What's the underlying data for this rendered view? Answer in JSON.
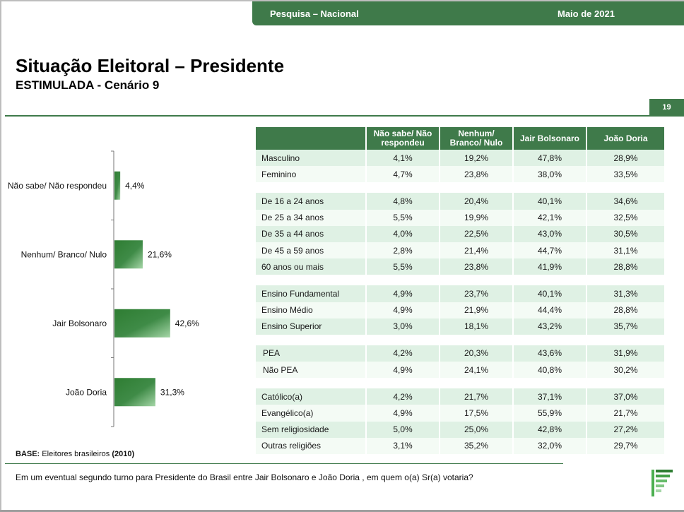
{
  "header": {
    "survey": "Pesquisa – Nacional",
    "date": "Maio de 2021"
  },
  "title": "Situação Eleitoral – Presidente",
  "subtitle": "ESTIMULADA - Cenário 9",
  "page_number": "19",
  "colors": {
    "brand_green": "#3f7a4a",
    "bar_dark": "#2e7d32",
    "bar_light": "#a5d6a7",
    "row_light": "#dff1e4",
    "row_lighter": "#f4fbf5"
  },
  "chart_data": [
    {
      "type": "bar",
      "orientation": "horizontal",
      "categories": [
        "Não sabe/ Não respondeu",
        "Nenhum/ Branco/ Nulo",
        "Jair Bolsonaro",
        "João Doria"
      ],
      "values": [
        4.4,
        21.6,
        42.6,
        31.3
      ],
      "value_labels": [
        "4,4%",
        "21,6%",
        "42,6%",
        "31,3%"
      ],
      "unit": "%",
      "grid": false,
      "legend": "none"
    },
    {
      "type": "table",
      "columns": [
        "",
        "Não sabe/ Não respondeu",
        "Nenhum/ Branco/ Nulo",
        "Jair Bolsonaro",
        "João Doria"
      ],
      "groups": [
        [
          [
            "Masculino",
            "4,1%",
            "19,2%",
            "47,8%",
            "28,9%"
          ],
          [
            "Feminino",
            "4,7%",
            "23,8%",
            "38,0%",
            "33,5%"
          ]
        ],
        [
          [
            "De 16 a 24 anos",
            "4,8%",
            "20,4%",
            "40,1%",
            "34,6%"
          ],
          [
            "De 25 a 34 anos",
            "5,5%",
            "19,9%",
            "42,1%",
            "32,5%"
          ],
          [
            "De 35 a 44 anos",
            "4,0%",
            "22,5%",
            "43,0%",
            "30,5%"
          ],
          [
            "De 45 a 59 anos",
            "2,8%",
            "21,4%",
            "44,7%",
            "31,1%"
          ],
          [
            "60 anos ou mais",
            "5,5%",
            "23,8%",
            "41,9%",
            "28,8%"
          ]
        ],
        [
          [
            "Ensino Fundamental",
            "4,9%",
            "23,7%",
            "40,1%",
            "31,3%"
          ],
          [
            "Ensino Médio",
            "4,9%",
            "21,9%",
            "44,4%",
            "28,8%"
          ],
          [
            "Ensino Superior",
            "3,0%",
            "18,1%",
            "43,2%",
            "35,7%"
          ]
        ],
        [
          [
            "PEA",
            "4,2%",
            "20,3%",
            "43,6%",
            "31,9%"
          ],
          [
            "Não PEA",
            "4,9%",
            "24,1%",
            "40,8%",
            "30,2%"
          ]
        ],
        [
          [
            "Católico(a)",
            "4,2%",
            "21,7%",
            "37,1%",
            "37,0%"
          ],
          [
            "Evangélico(a)",
            "4,9%",
            "17,5%",
            "55,9%",
            "21,7%"
          ],
          [
            "Sem religiosidade",
            "5,0%",
            "25,0%",
            "42,8%",
            "27,2%"
          ],
          [
            "Outras religiões",
            "3,1%",
            "35,2%",
            "32,0%",
            "29,7%"
          ]
        ]
      ]
    }
  ],
  "base": {
    "label": "BASE:",
    "text": "Eleitores brasileiros",
    "year": "(2010)"
  },
  "question": "Em um eventual segundo turno para Presidente do Brasil entre Jair Bolsonaro e João Doria , em quem o(a) Sr(a) votaria?",
  "logo": {
    "icon": "striped-flag-logo"
  }
}
